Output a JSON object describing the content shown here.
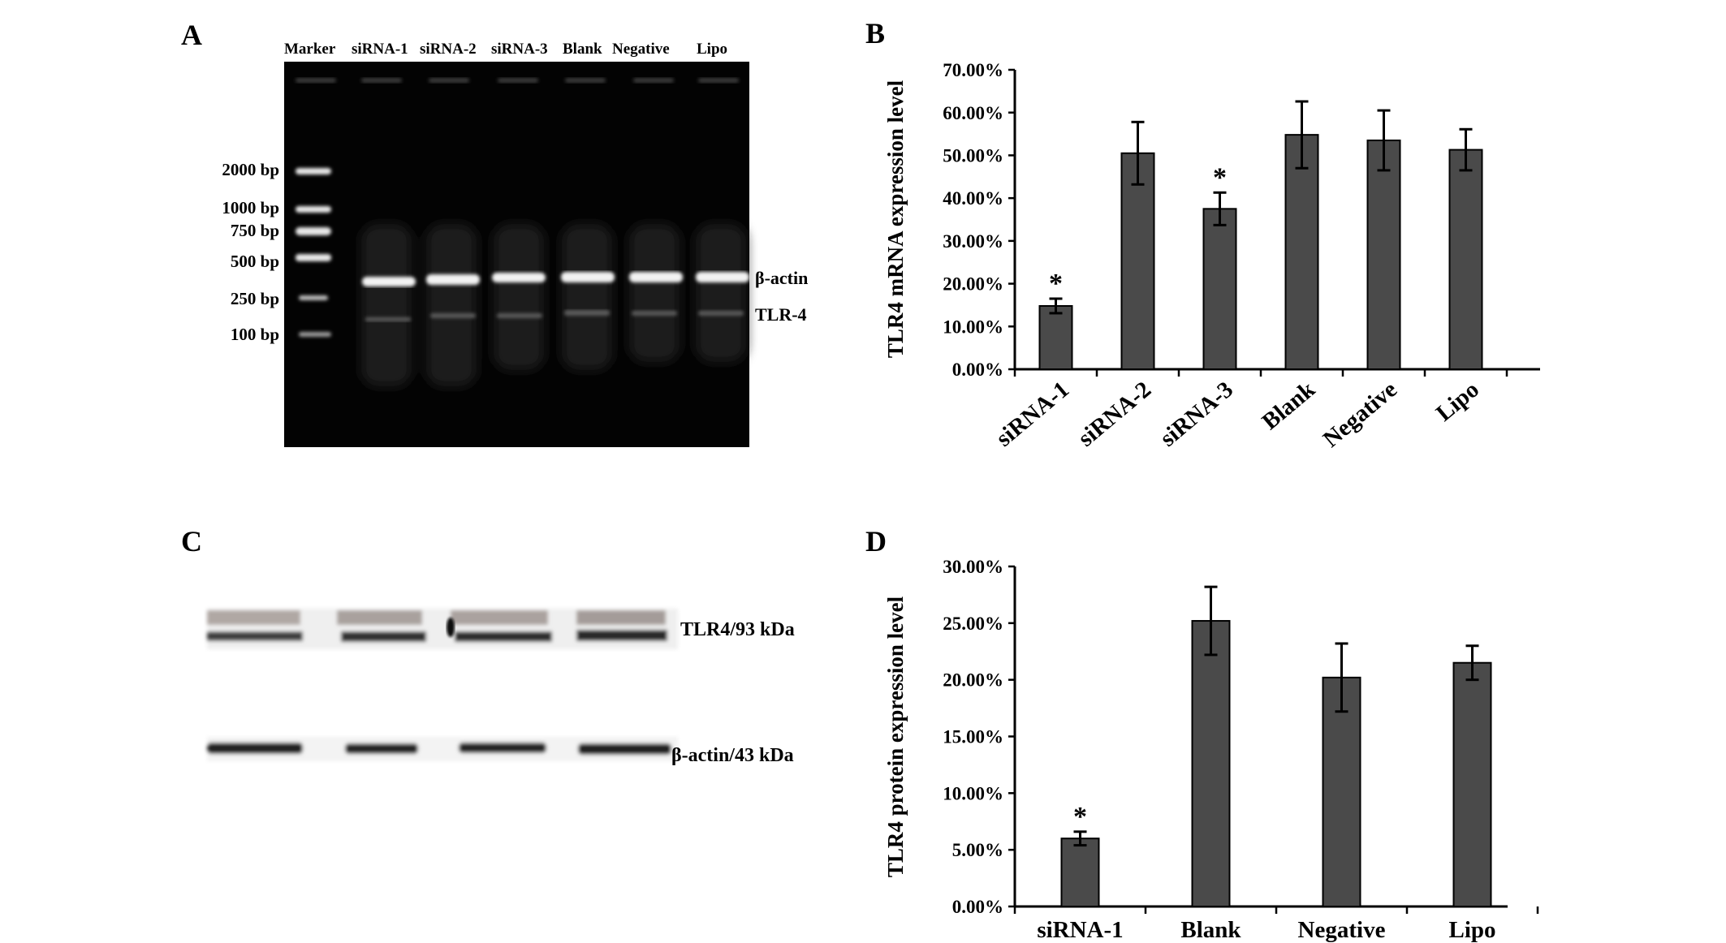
{
  "panels": {
    "A": "A",
    "B": "B",
    "C": "C",
    "D": "D"
  },
  "gel": {
    "lane_labels": [
      "Marker",
      "siRNA-1",
      "siRNA-2",
      "siRNA-3",
      "Blank",
      "Negative",
      "Lipo"
    ],
    "marker_sizes": [
      "2000 bp",
      "1000 bp",
      "750 bp",
      "500 bp",
      "250 bp",
      "100 bp"
    ],
    "band_labels": [
      "β-actin",
      "TLR-4"
    ]
  },
  "western": {
    "band_labels": [
      "TLR4/93 kDa",
      "β-actin/43 kDa"
    ]
  },
  "chart_data": [
    {
      "type": "bar",
      "panel": "B",
      "categories": [
        "siRNA-1",
        "siRNA-2",
        "siRNA-3",
        "Blank",
        "Negative",
        "Lipo"
      ],
      "values": [
        14.8,
        50.5,
        37.5,
        54.8,
        53.5,
        51.3
      ],
      "errors": [
        1.7,
        7.3,
        3.8,
        7.8,
        7.0,
        4.8
      ],
      "significant": [
        "*",
        "",
        "*",
        "",
        "",
        ""
      ],
      "ylabel": "TLR4 mRNA expression level",
      "ylim": [
        0,
        70
      ],
      "yticks": [
        "0.00%",
        "10.00%",
        "20.00%",
        "30.00%",
        "40.00%",
        "50.00%",
        "60.00%",
        "70.00%"
      ],
      "bar_color": "#4a4a4a"
    },
    {
      "type": "bar",
      "panel": "D",
      "categories": [
        "siRNA-1",
        "Blank",
        "Negative",
        "Lipo"
      ],
      "values": [
        6.0,
        25.2,
        20.2,
        21.5
      ],
      "errors": [
        0.6,
        3.0,
        3.0,
        1.5
      ],
      "significant": [
        "*",
        "",
        "",
        ""
      ],
      "ylabel": "TLR4 protein expression level",
      "ylim": [
        0,
        30
      ],
      "yticks": [
        "0.00%",
        "5.00%",
        "10.00%",
        "15.00%",
        "20.00%",
        "25.00%",
        "30.00%"
      ],
      "bar_color": "#4a4a4a"
    }
  ]
}
